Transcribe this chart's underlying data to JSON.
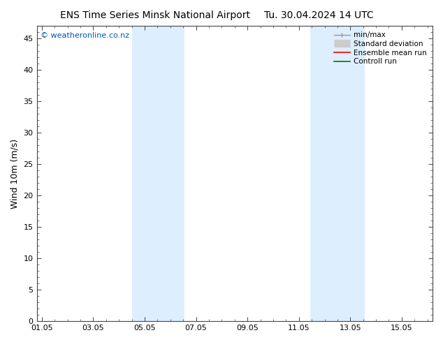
{
  "title_left": "ENS Time Series Minsk National Airport",
  "title_right": "Tu. 30.04.2024 14 UTC",
  "ylabel": "Wind 10m (m/s)",
  "xlabel": "",
  "ylim": [
    0,
    47
  ],
  "yticks": [
    0,
    5,
    10,
    15,
    20,
    25,
    30,
    35,
    40,
    45
  ],
  "xtick_labels": [
    "01.05",
    "03.05",
    "05.05",
    "07.05",
    "09.05",
    "11.05",
    "13.05",
    "15.05"
  ],
  "xtick_positions": [
    0,
    2,
    4,
    6,
    8,
    10,
    12,
    14
  ],
  "xlim": [
    -0.2,
    15.2
  ],
  "shaded_bands": [
    {
      "xmin": 3.5,
      "xmax": 4.5
    },
    {
      "xmin": 4.5,
      "xmax": 5.5
    },
    {
      "xmin": 10.5,
      "xmax": 11.5
    },
    {
      "xmin": 11.5,
      "xmax": 12.5
    }
  ],
  "band_color": "#ddeeff",
  "background_color": "#ffffff",
  "plot_bg_color": "#ffffff",
  "watermark": "© weatheronline.co.nz",
  "watermark_color": "#0055bb",
  "legend_entries": [
    {
      "label": "min/max",
      "color": "#999999",
      "linewidth": 1.0,
      "linestyle": "-"
    },
    {
      "label": "Standard deviation",
      "color": "#cccccc",
      "linewidth": 8,
      "linestyle": "-"
    },
    {
      "label": "Ensemble mean run",
      "color": "#ff0000",
      "linewidth": 1.2,
      "linestyle": "-"
    },
    {
      "label": "Controll run",
      "color": "#007700",
      "linewidth": 1.2,
      "linestyle": "-"
    }
  ],
  "title_fontsize": 10,
  "tick_fontsize": 8,
  "ylabel_fontsize": 9,
  "watermark_fontsize": 8
}
